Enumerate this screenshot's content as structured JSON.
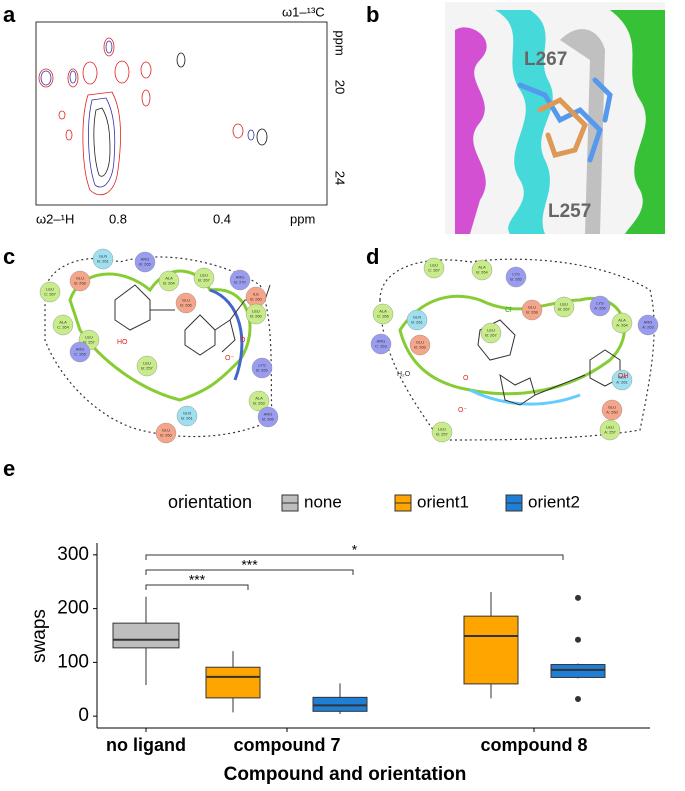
{
  "panel_labels": [
    "a",
    "b",
    "c",
    "d",
    "e"
  ],
  "panel_a": {
    "top_label": "ω1–¹³C",
    "y_unit": "ppm",
    "y_ticks": [
      "20",
      "24"
    ],
    "x_label": "ω2–¹H",
    "x_ticks": [
      "0.8",
      "0.4"
    ],
    "x_unit": "ppm"
  },
  "panel_b": {
    "labels": [
      "L267",
      "L257"
    ]
  },
  "panel_c": {
    "residues": [
      {
        "name": "LEU",
        "chain": "C: 267"
      },
      {
        "name": "GLN",
        "chain": "B: 261"
      },
      {
        "name": "ARG",
        "chain": "B: 265"
      },
      {
        "name": "GLU",
        "chain": "B: 268"
      },
      {
        "name": "ALA",
        "chain": "B: 264"
      },
      {
        "name": "GLU",
        "chain": "B: 266"
      },
      {
        "name": "LEU",
        "chain": "B: 267"
      },
      {
        "name": "ARG",
        "chain": "B: 270"
      },
      {
        "name": "ILE",
        "chain": "B: 260"
      },
      {
        "name": "LEU",
        "chain": "B: 260"
      },
      {
        "name": "ALA",
        "chain": "C: 264"
      },
      {
        "name": "LEU",
        "chain": "B: 257"
      },
      {
        "name": "ARG",
        "chain": "C: 265"
      },
      {
        "name": "LEU",
        "chain": "B: 257"
      },
      {
        "name": "LYS",
        "chain": "B: 265"
      },
      {
        "name": "ALA",
        "chain": "B: 263"
      },
      {
        "name": "ARG",
        "chain": "B: 266"
      },
      {
        "name": "GLN",
        "chain": "B: 261"
      },
      {
        "name": "GLU",
        "chain": "B: 260"
      }
    ],
    "atoms": [
      "HO",
      "O",
      "O⁻"
    ]
  },
  "panel_d": {
    "residues": [
      {
        "name": "LEU",
        "chain": "C: 267"
      },
      {
        "name": "ALA",
        "chain": "B: 264"
      },
      {
        "name": "LYS",
        "chain": "B: 265"
      },
      {
        "name": "ALA",
        "chain": "C: 266"
      },
      {
        "name": "GLN",
        "chain": "B: 261"
      },
      {
        "name": "GLU",
        "chain": "B: 268"
      },
      {
        "name": "LEU",
        "chain": "B: 267"
      },
      {
        "name": "LYS",
        "chain": "A: 265"
      },
      {
        "name": "ALA",
        "chain": "A: 264"
      },
      {
        "name": "ARG",
        "chain": "A: 263"
      },
      {
        "name": "ARG",
        "chain": "C: 263"
      },
      {
        "name": "GLU",
        "chain": "B: 266"
      },
      {
        "name": "LEU",
        "chain": "B: 267"
      },
      {
        "name": "GLN",
        "chain": "A: 261"
      },
      {
        "name": "GLU",
        "chain": "A: 260"
      },
      {
        "name": "LEU",
        "chain": "A: 257"
      },
      {
        "name": "LEU",
        "chain": "B: 257"
      }
    ],
    "atoms": [
      "Cl",
      "OH",
      "H₂O",
      "O",
      "O⁻"
    ]
  },
  "chart_data": {
    "type": "box",
    "legend_title": "orientation",
    "legend_position": "top",
    "y_label": "swaps",
    "x_label": "Compound and orientation",
    "categories": [
      "no ligand",
      "compound 7",
      "compound 8"
    ],
    "ylim": [
      -22,
      322
    ],
    "yticks": [
      0,
      100,
      200,
      300
    ],
    "series": [
      {
        "name": "none",
        "color": "#bebebe",
        "values": [
          {
            "low": 58,
            "q1": 127,
            "median": 142,
            "q3": 173,
            "high": 222,
            "outliers": []
          },
          null,
          null
        ]
      },
      {
        "name": "orient1",
        "color": "#ffa500",
        "values": [
          null,
          {
            "low": 7,
            "q1": 34,
            "median": 73,
            "q3": 91,
            "high": 121,
            "outliers": []
          },
          {
            "low": 33,
            "q1": 60,
            "median": 149,
            "q3": 186,
            "high": 231,
            "outliers": []
          }
        ]
      },
      {
        "name": "orient2",
        "color": "#1f7fd6",
        "values": [
          null,
          {
            "low": 4,
            "q1": 9,
            "median": 20,
            "q3": 35,
            "high": 61,
            "outliers": []
          },
          {
            "low": 70,
            "q1": 72,
            "median": 86,
            "q3": 96,
            "high": 98,
            "outliers": [
              220,
              142,
              32
            ]
          }
        ]
      }
    ],
    "annotations": [
      "***",
      "***",
      "*"
    ]
  }
}
